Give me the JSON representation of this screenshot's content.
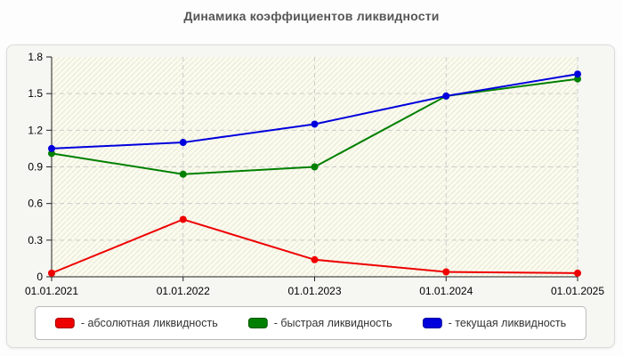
{
  "title": "Динамика коэффициентов ликвидности",
  "chart_data": {
    "type": "line",
    "categories": [
      "01.01.2021",
      "01.01.2022",
      "01.01.2023",
      "01.01.2024",
      "01.01.2025"
    ],
    "series": [
      {
        "name": "абсолютная ликвидность",
        "legend_label": "- абсолютная ликвидность",
        "color": "#ee0000",
        "values": [
          0.03,
          0.47,
          0.14,
          0.04,
          0.03
        ]
      },
      {
        "name": "быстрая ликвидность",
        "legend_label": "- быстрая ликвидность",
        "color": "#008000",
        "values": [
          1.01,
          0.84,
          0.9,
          1.48,
          1.62
        ]
      },
      {
        "name": "текущая ликвидность",
        "legend_label": "- текущая ликвидность",
        "color": "#0000dd",
        "values": [
          1.05,
          1.1,
          1.25,
          1.48,
          1.66
        ]
      }
    ],
    "ylim": [
      0,
      1.8
    ],
    "yticks": [
      0,
      0.3,
      0.6,
      0.9,
      1.2,
      1.5,
      1.8
    ],
    "ytick_labels": [
      "0",
      "0.3",
      "0.6",
      "0.9",
      "1.2",
      "1.5",
      "1.8"
    ],
    "grid": true,
    "grid_style": "dashed",
    "plot_background": "#fbfbee",
    "hatch_color": "#e7e7d9",
    "axis_color": "#222222",
    "legend_position": "bottom",
    "marker": "circle"
  }
}
